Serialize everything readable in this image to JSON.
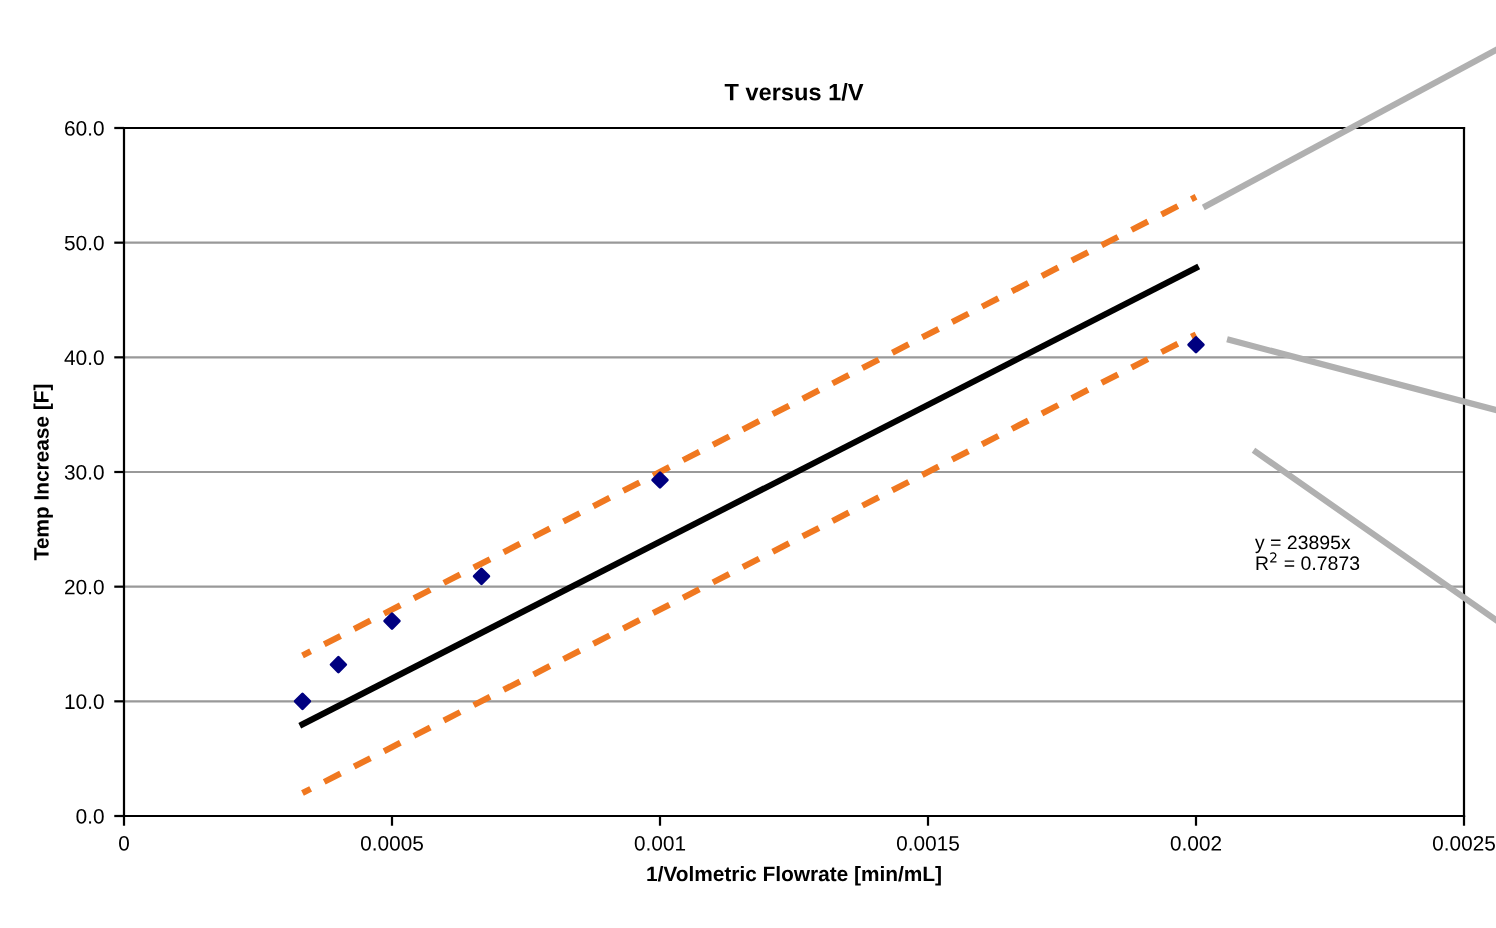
{
  "chart_data": {
    "type": "scatter",
    "title": "T versus 1/V",
    "xlabel": "1/Volmetric Flowrate [min/mL]",
    "ylabel": "Temp Increase [F]",
    "annotations": [
      "y = 23895x\nR$^{2}$ = 0.7873"
    ],
    "series": [
      {
        "color": "#000080",
        "marker": "diamond",
        "x": [
          0.000333,
          0.0004,
          0.0005,
          0.000667,
          0.001,
          0.002
        ],
        "values": [
          10.0,
          13.2,
          17.0,
          20.9,
          29.3,
          41.1
        ]
      },
      {
        "type": "line",
        "color": "#000000",
        "line_style": "solid",
        "x": [
          0.000333,
          0.002
        ],
        "values": [
          8.0,
          47.8
        ]
      },
      {
        "type": "line",
        "color": "#f07820",
        "line_style": "dashed",
        "x": [
          0.000333,
          0.002
        ],
        "values": [
          14.0,
          54.0
        ]
      },
      {
        "type": "line",
        "color": "#f07820",
        "line_style": "dashed",
        "x": [
          0.000333,
          0.002
        ],
        "values": [
          2.0,
          42.0
        ]
      }
    ],
    "xlim": [
      0,
      0.0025
    ],
    "xticks": [
      0,
      0.0005,
      0.001,
      0.0015,
      0.002,
      0.0025
    ],
    "ylim": [
      0,
      60
    ],
    "yticks": [
      {
        "value": 0,
        "label": "0.0"
      },
      {
        "value": 10,
        "label": "10.0"
      },
      {
        "value": 20,
        "label": "20.0"
      },
      {
        "value": 30,
        "label": "30.0"
      },
      {
        "value": 40,
        "label": "40.0"
      },
      {
        "value": 50,
        "label": "50.0"
      },
      {
        "value": 60,
        "label": "60.0"
      }
    ],
    "grid": "y",
    "legend": false
  }
}
